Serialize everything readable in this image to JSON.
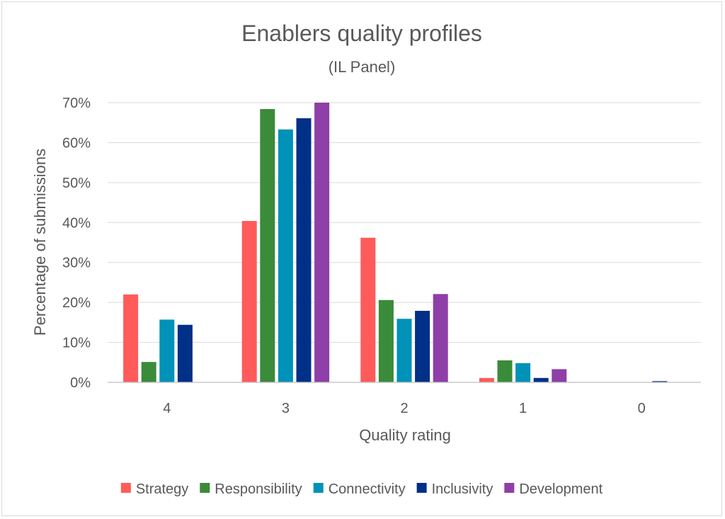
{
  "chart_data": {
    "type": "bar",
    "title": "Enablers quality profiles",
    "subtitle": "(IL Panel)",
    "xlabel": "Quality rating",
    "ylabel": "Percentage of submissions",
    "categories": [
      "4",
      "3",
      "2",
      "1",
      "0"
    ],
    "yticks": [
      "0%",
      "10%",
      "20%",
      "30%",
      "40%",
      "50%",
      "60%",
      "70%"
    ],
    "ylim": [
      0,
      70
    ],
    "grid": true,
    "legend_position": "bottom",
    "series": [
      {
        "name": "Strategy",
        "color": "#ff5b5b",
        "values": [
          22,
          40.4,
          36.2,
          1.1,
          0
        ]
      },
      {
        "name": "Responsibility",
        "color": "#3a8b3a",
        "values": [
          5.1,
          68.4,
          20.6,
          5.5,
          0
        ]
      },
      {
        "name": "Connectivity",
        "color": "#0092b8",
        "values": [
          15.7,
          63.3,
          15.9,
          4.8,
          0
        ]
      },
      {
        "name": "Inclusivity",
        "color": "#003087",
        "values": [
          14.4,
          66.1,
          17.9,
          1.1,
          0.3
        ]
      },
      {
        "name": "Development",
        "color": "#8e3fa8",
        "values": [
          0,
          70,
          22.1,
          3.3,
          0
        ]
      }
    ]
  }
}
